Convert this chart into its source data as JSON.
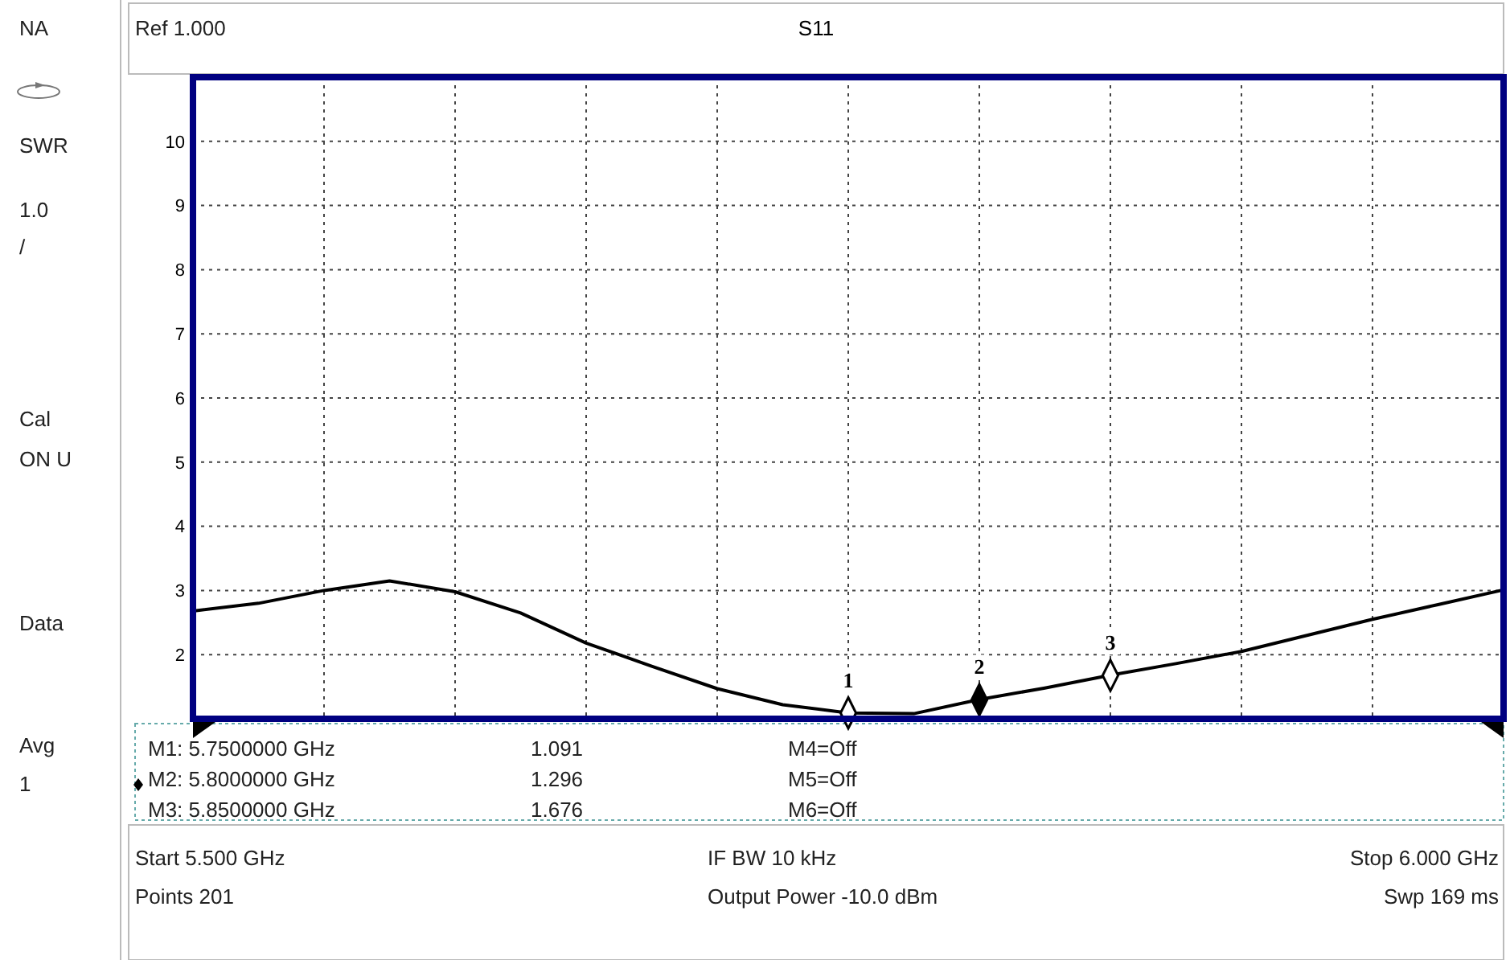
{
  "chart_data": {
    "type": "line",
    "title": "S11",
    "ylim": [
      1,
      11
    ],
    "categories": [
      null,
      null,
      null,
      null,
      null,
      null,
      null,
      null,
      null,
      null,
      null,
      null,
      null,
      null,
      null,
      null,
      null,
      null,
      null,
      null,
      null
    ],
    "yticks": [
      2,
      3,
      4,
      5,
      6,
      7,
      8,
      9,
      10
    ],
    "grid": true,
    "tick_labels": "y",
    "series": [
      {
        "color": "#000000",
        "marker": "none",
        "line_style": "solid",
        "values": [
          2.68,
          2.8,
          3.0,
          3.15,
          2.98,
          2.65,
          2.18,
          1.82,
          1.47,
          1.22,
          1.09,
          1.08,
          1.3,
          1.48,
          1.68,
          1.86,
          2.05,
          2.3,
          2.55,
          2.78,
          3.01
        ]
      },
      {
        "type": "scatter",
        "color": "#000000",
        "colors": [
          null,
          null,
          null,
          null,
          null,
          null,
          null,
          null,
          null,
          null,
          "#ffffff",
          null,
          "#000000",
          null,
          "#ffffff",
          null,
          null,
          null,
          null,
          null,
          null
        ],
        "marker": "diamond",
        "values": [
          null,
          null,
          null,
          null,
          null,
          null,
          null,
          null,
          null,
          null,
          1.091,
          null,
          1.296,
          null,
          1.676,
          null,
          null,
          null,
          null,
          null,
          null
        ]
      }
    ],
    "annotations": [
      "NA",
      "SWR",
      "1.0",
      "/",
      "Cal",
      "ON U",
      "Data",
      "Avg",
      "1",
      "Ref 1.000",
      "M1:  5.7500000 GHz",
      "1.091",
      "M4=Off",
      "M2:  5.8000000 GHz",
      "1.296",
      "M5=Off",
      "M3:  5.8500000 GHz",
      "1.676",
      "M6=Off",
      "Start 5.500 GHz",
      "IF BW 10 kHz",
      "Stop 6.000 GHz",
      "Points 201",
      "Output Power -10.0 dBm",
      "Swp 169 ms",
      "1",
      "2",
      "3"
    ]
  }
}
